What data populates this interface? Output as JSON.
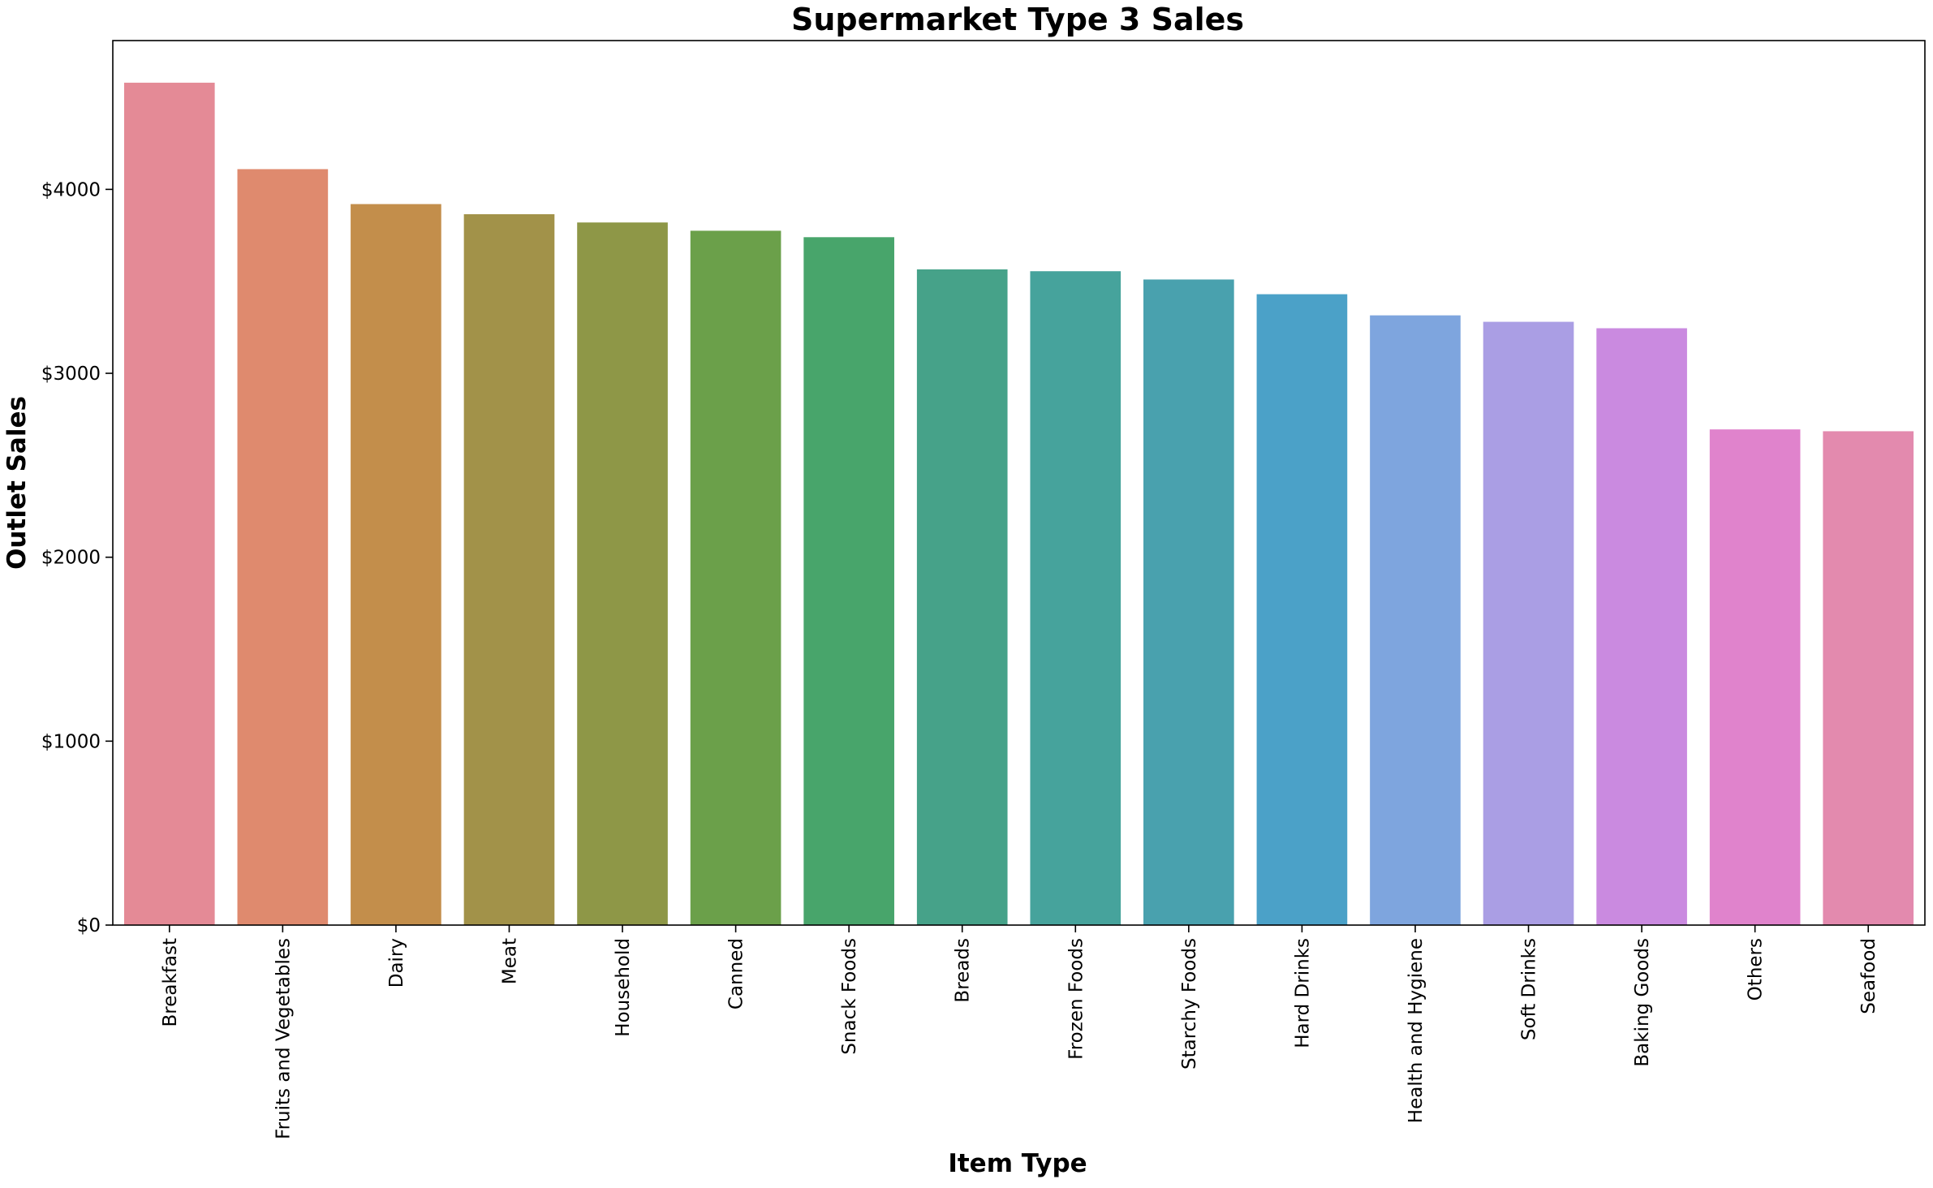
{
  "chart_data": {
    "type": "bar",
    "title": "Supermarket Type 3 Sales",
    "xlabel": "Item Type",
    "ylabel": "Outlet Sales",
    "categories": [
      "Breakfast",
      "Fruits and Vegetables",
      "Dairy",
      "Meat",
      "Household",
      "Canned",
      "Snack Foods",
      "Breads",
      "Frozen Foods",
      "Starchy Foods",
      "Hard Drinks",
      "Health and Hygiene",
      "Soft Drinks",
      "Baking Goods",
      "Others",
      "Seafood"
    ],
    "values": [
      4580,
      4110,
      3920,
      3865,
      3820,
      3775,
      3740,
      3565,
      3555,
      3510,
      3430,
      3315,
      3280,
      3245,
      2695,
      2685
    ],
    "colors": [
      "#e48a96",
      "#df8a6e",
      "#c38e4b",
      "#a29249",
      "#8e9747",
      "#6ba04a",
      "#48a56b",
      "#46a289",
      "#46a39c",
      "#49a1ae",
      "#4ba1c8",
      "#7ea5de",
      "#aa9ee4",
      "#ca8ae0",
      "#e083cc",
      "#e38aae"
    ],
    "yticks": [
      0,
      1000,
      2000,
      3000,
      4000
    ],
    "ytick_labels": [
      "$0",
      "$1000",
      "$2000",
      "$3000",
      "$4000"
    ],
    "ylim": [
      0,
      4809
    ],
    "grid": false,
    "legend": false
  }
}
